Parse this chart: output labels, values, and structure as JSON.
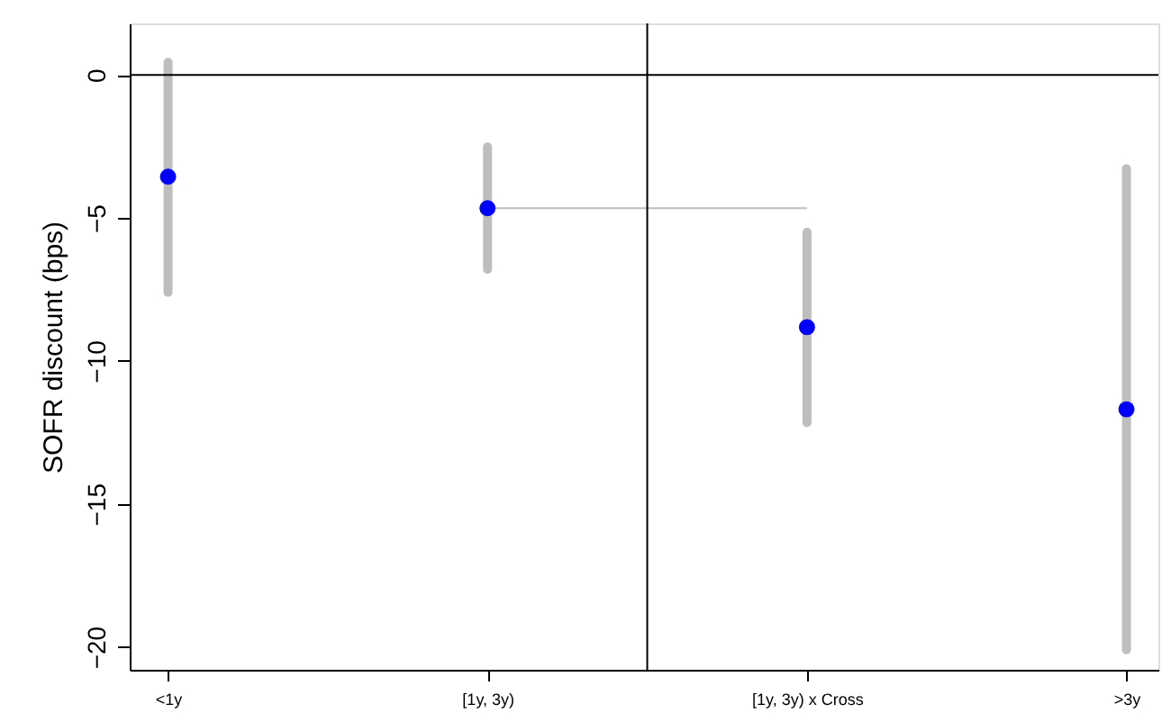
{
  "chart_data": {
    "type": "scatter",
    "ylabel": "SOFR discount (bps)",
    "categories": [
      "<1y",
      "[1y, 3y)",
      "[1y, 3y) x Cross",
      ">3y"
    ],
    "ylim": [
      -20.8,
      1.8
    ],
    "yticks": [
      -20,
      -15,
      -10,
      -5,
      0
    ],
    "series": [
      {
        "color": "#0000ff",
        "marker": "circle",
        "values": [
          -3.56,
          -4.66,
          -8.82,
          -11.69
        ],
        "errors": [
          [
            -7.6,
            0.44
          ],
          [
            -6.8,
            -2.52
          ],
          [
            -12.16,
            -5.5
          ],
          [
            -20.1,
            -3.28
          ]
        ]
      },
      {
        "type": "line",
        "color": "#bebebe",
        "values": [
          null,
          -4.66,
          -4.66,
          null
        ]
      }
    ],
    "ref_lines": [
      {
        "axis": "y",
        "value": 0,
        "color": "#000000"
      }
    ],
    "grid": false
  }
}
